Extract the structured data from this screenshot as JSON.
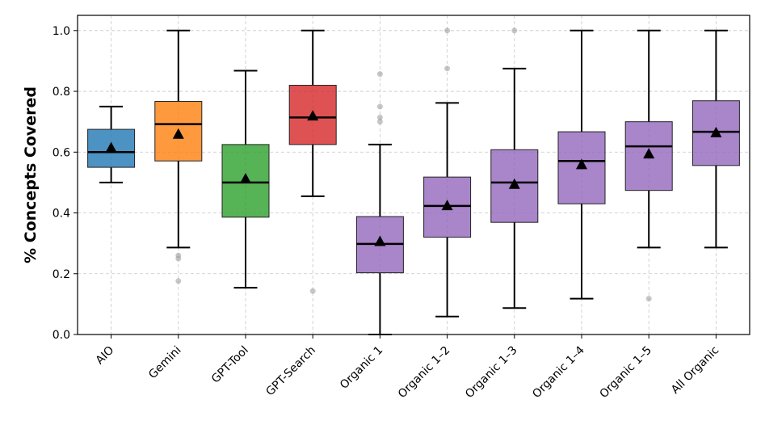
{
  "chart_data": {
    "type": "box",
    "title": "",
    "xlabel": "",
    "ylabel": "% Concepts Covered",
    "ylim": [
      0.0,
      1.05
    ],
    "yticks": [
      0.0,
      0.2,
      0.4,
      0.6,
      0.8,
      1.0
    ],
    "ytick_labels": [
      "0.0",
      "0.2",
      "0.4",
      "0.6",
      "0.8",
      "1.0"
    ],
    "grid": true,
    "categories": [
      "AIO",
      "Gemini",
      "GPT-Tool",
      "GPT-Search",
      "Organic 1",
      "Organic 1–2",
      "Organic 1–3",
      "Organic 1–4",
      "Organic 1–5",
      "All Organic"
    ],
    "boxes": [
      {
        "label": "AIO",
        "color": "#1f77b4",
        "whisker_low": 0.5,
        "q1": 0.55,
        "median": 0.6,
        "q3": 0.675,
        "whisker_high": 0.75,
        "mean": 0.615,
        "outliers": []
      },
      {
        "label": "Gemini",
        "color": "#ff7f0e",
        "whisker_low": 0.286,
        "q1": 0.571,
        "median": 0.692,
        "q3": 0.767,
        "whisker_high": 1.0,
        "mean": 0.66,
        "outliers": [
          0.26,
          0.25,
          0.176
        ]
      },
      {
        "label": "GPT-Tool",
        "color": "#2ca02c",
        "whisker_low": 0.154,
        "q1": 0.386,
        "median": 0.5,
        "q3": 0.625,
        "whisker_high": 0.868,
        "mean": 0.513,
        "outliers": []
      },
      {
        "label": "GPT-Search",
        "color": "#d62728",
        "whisker_low": 0.455,
        "q1": 0.625,
        "median": 0.714,
        "q3": 0.82,
        "whisker_high": 1.0,
        "mean": 0.72,
        "outliers": [
          0.143
        ]
      },
      {
        "label": "Organic 1",
        "color": "#9467bd",
        "whisker_low": 0.0,
        "q1": 0.203,
        "median": 0.298,
        "q3": 0.388,
        "whisker_high": 0.625,
        "mean": 0.307,
        "outliers": [
          0.857,
          0.75,
          0.714,
          0.7
        ]
      },
      {
        "label": "Organic 1–2",
        "color": "#9467bd",
        "whisker_low": 0.059,
        "q1": 0.32,
        "median": 0.423,
        "q3": 0.518,
        "whisker_high": 0.762,
        "mean": 0.425,
        "outliers": [
          1.0,
          0.875
        ]
      },
      {
        "label": "Organic 1–3",
        "color": "#9467bd",
        "whisker_low": 0.087,
        "q1": 0.369,
        "median": 0.5,
        "q3": 0.608,
        "whisker_high": 0.875,
        "mean": 0.495,
        "outliers": [
          1.0
        ]
      },
      {
        "label": "Organic 1–4",
        "color": "#9467bd",
        "whisker_low": 0.118,
        "q1": 0.43,
        "median": 0.571,
        "q3": 0.667,
        "whisker_high": 1.0,
        "mean": 0.56,
        "outliers": []
      },
      {
        "label": "Organic 1–5",
        "color": "#9467bd",
        "whisker_low": 0.286,
        "q1": 0.474,
        "median": 0.619,
        "q3": 0.7,
        "whisker_high": 1.0,
        "mean": 0.595,
        "outliers": [
          0.118
        ]
      },
      {
        "label": "All Organic",
        "color": "#9467bd",
        "whisker_low": 0.286,
        "q1": 0.556,
        "median": 0.667,
        "q3": 0.769,
        "whisker_high": 1.0,
        "mean": 0.665,
        "outliers": []
      }
    ]
  }
}
